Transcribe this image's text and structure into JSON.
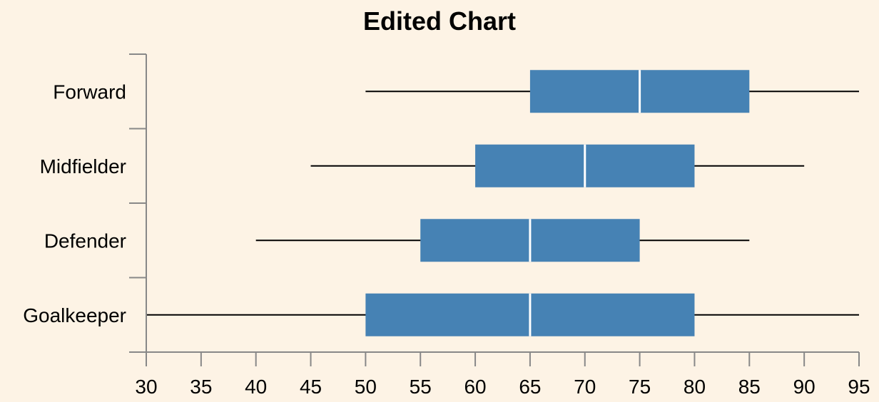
{
  "chart_data": {
    "type": "boxplot",
    "orientation": "horizontal",
    "title": "Edited Chart",
    "xlabel": "",
    "ylabel": "",
    "xlim": [
      30,
      95
    ],
    "x_ticks": [
      "30",
      "35",
      "40",
      "45",
      "50",
      "55",
      "60",
      "65",
      "70",
      "75",
      "80",
      "85",
      "90",
      "95"
    ],
    "grid": false,
    "categories": [
      "Forward",
      "Midfielder",
      "Defender",
      "Goalkeeper"
    ],
    "boxes": [
      {
        "category": "Forward",
        "min": 50,
        "q1": 65,
        "median": 75,
        "q3": 85,
        "max": 95
      },
      {
        "category": "Midfielder",
        "min": 45,
        "q1": 60,
        "median": 70,
        "q3": 80,
        "max": 90
      },
      {
        "category": "Defender",
        "min": 40,
        "q1": 55,
        "median": 65,
        "q3": 75,
        "max": 85
      },
      {
        "category": "Goalkeeper",
        "min": 30,
        "q1": 50,
        "median": 65,
        "q3": 80,
        "max": 95
      }
    ],
    "colors": {
      "box_fill": "#4682b4",
      "median_line": "#ffffff",
      "whisker": "#000000",
      "axis": "#888888",
      "background": "#fdf3e5"
    }
  }
}
